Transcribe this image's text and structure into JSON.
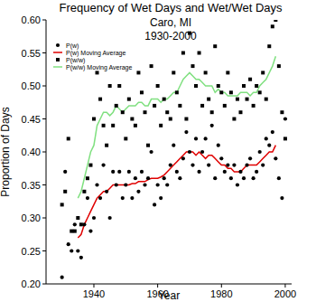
{
  "chart_data": {
    "type": "scatter",
    "title": "Frequency of Wet Days and Wet/Wet Days",
    "subtitle": [
      "Caro, MI",
      "1930-2000"
    ],
    "x_label": "Year",
    "y_label": "Proportion of Days",
    "xlim": [
      1925,
      2002
    ],
    "ylim": [
      0.2,
      0.6
    ],
    "xticks": [
      1940,
      1960,
      1980,
      2000
    ],
    "yticks": [
      {
        "value": 0.2,
        "label": "0.20"
      },
      0.25,
      {
        "value": 0.3,
        "label": "0.30"
      },
      0.35,
      {
        "value": 0.4,
        "label": "0.40"
      },
      0.45,
      {
        "value": 0.5,
        "label": "0.50"
      },
      0.55,
      {
        "value": 0.6,
        "label": "0.60"
      }
    ],
    "grid": false,
    "legend": "top-left",
    "x": [
      1930,
      1931,
      1932,
      1933,
      1934,
      1935,
      1936,
      1937,
      1938,
      1939,
      1940,
      1941,
      1942,
      1943,
      1944,
      1945,
      1946,
      1947,
      1948,
      1949,
      1950,
      1951,
      1952,
      1953,
      1954,
      1955,
      1956,
      1957,
      1958,
      1959,
      1960,
      1961,
      1962,
      1963,
      1964,
      1965,
      1966,
      1967,
      1968,
      1969,
      1970,
      1971,
      1972,
      1973,
      1974,
      1975,
      1976,
      1977,
      1978,
      1979,
      1980,
      1981,
      1982,
      1983,
      1984,
      1985,
      1986,
      1987,
      1988,
      1989,
      1990,
      1991,
      1992,
      1993,
      1994,
      1995,
      1996,
      1997,
      1998,
      1999,
      2000
    ],
    "series": [
      {
        "name": "P(w)",
        "type": "scatter",
        "marker": "circle",
        "color": "#000000",
        "values": [
          0.21,
          0.37,
          0.26,
          0.25,
          0.29,
          0.25,
          0.24,
          0.29,
          0.33,
          0.28,
          0.3,
          0.35,
          0.33,
          0.38,
          0.34,
          0.3,
          0.37,
          0.35,
          0.37,
          0.33,
          0.35,
          0.37,
          0.33,
          0.36,
          0.34,
          0.37,
          0.35,
          0.36,
          0.4,
          0.32,
          0.35,
          0.33,
          0.36,
          0.35,
          0.38,
          0.41,
          0.37,
          0.36,
          0.39,
          0.43,
          0.4,
          0.38,
          0.42,
          0.37,
          0.4,
          0.42,
          0.38,
          0.44,
          0.36,
          0.41,
          0.39,
          0.37,
          0.38,
          0.36,
          0.38,
          0.35,
          0.37,
          0.36,
          0.38,
          0.39,
          0.36,
          0.37,
          0.4,
          0.38,
          0.42,
          0.41,
          0.43,
          0.39,
          0.36,
          0.33,
          0.45
        ]
      },
      {
        "name": "P(w) Moving Average",
        "type": "line",
        "line_style": "solid",
        "color": "#e00000",
        "values": [
          null,
          null,
          null,
          null,
          null,
          0.27,
          0.275,
          0.29,
          0.3,
          0.31,
          0.32,
          0.33,
          0.335,
          0.34,
          0.34,
          0.345,
          0.35,
          0.35,
          0.35,
          0.35,
          0.35,
          0.35,
          0.352,
          0.352,
          0.355,
          0.355,
          0.355,
          0.358,
          0.36,
          0.36,
          0.36,
          0.362,
          0.365,
          0.37,
          0.375,
          0.38,
          0.385,
          0.39,
          0.395,
          0.4,
          0.4,
          0.4,
          0.395,
          0.4,
          0.395,
          0.39,
          0.395,
          0.395,
          0.39,
          0.385,
          0.38,
          0.38,
          0.375,
          0.375,
          0.37,
          0.37,
          0.37,
          0.375,
          0.38,
          0.38,
          0.38,
          0.38,
          0.385,
          0.39,
          0.395,
          0.4,
          0.4,
          0.41,
          null,
          null,
          null
        ]
      },
      {
        "name": "P(w/w)",
        "type": "scatter",
        "marker": "square",
        "color": "#000000",
        "values": [
          0.32,
          0.34,
          0.42,
          0.28,
          0.28,
          0.3,
          0.29,
          0.34,
          0.36,
          0.38,
          0.45,
          0.52,
          0.48,
          0.44,
          0.41,
          0.5,
          0.44,
          0.47,
          0.5,
          0.46,
          0.42,
          0.48,
          0.45,
          0.44,
          0.52,
          0.49,
          0.46,
          0.41,
          0.53,
          0.47,
          0.5,
          0.44,
          0.48,
          0.46,
          0.45,
          0.52,
          0.49,
          0.47,
          0.55,
          0.45,
          0.58,
          0.53,
          0.5,
          0.55,
          0.47,
          0.52,
          0.48,
          0.46,
          0.56,
          0.5,
          0.49,
          0.47,
          0.52,
          0.49,
          0.45,
          0.48,
          0.46,
          0.5,
          0.48,
          0.51,
          0.47,
          0.5,
          0.49,
          0.52,
          0.48,
          0.56,
          0.59,
          0.6,
          0.53,
          0.46,
          0.42
        ]
      },
      {
        "name": "P(w/w) Moving Average",
        "type": "line",
        "line_style": "solid",
        "color": "#80e080",
        "values": [
          null,
          null,
          null,
          null,
          null,
          0.33,
          0.34,
          0.36,
          0.38,
          0.4,
          0.41,
          0.44,
          0.45,
          0.46,
          0.46,
          0.455,
          0.46,
          0.47,
          0.465,
          0.46,
          0.465,
          0.47,
          0.47,
          0.47,
          0.475,
          0.475,
          0.47,
          0.47,
          0.48,
          0.48,
          0.48,
          0.475,
          0.48,
          0.48,
          0.485,
          0.49,
          0.49,
          0.5,
          0.51,
          0.515,
          0.52,
          0.515,
          0.51,
          0.51,
          0.505,
          0.5,
          0.5,
          0.5,
          0.49,
          0.495,
          0.49,
          0.49,
          0.485,
          0.485,
          0.485,
          0.485,
          0.49,
          0.49,
          0.49,
          0.485,
          0.49,
          0.49,
          0.5,
          0.505,
          0.51,
          0.52,
          0.53,
          0.545,
          null,
          null,
          null
        ]
      }
    ]
  }
}
